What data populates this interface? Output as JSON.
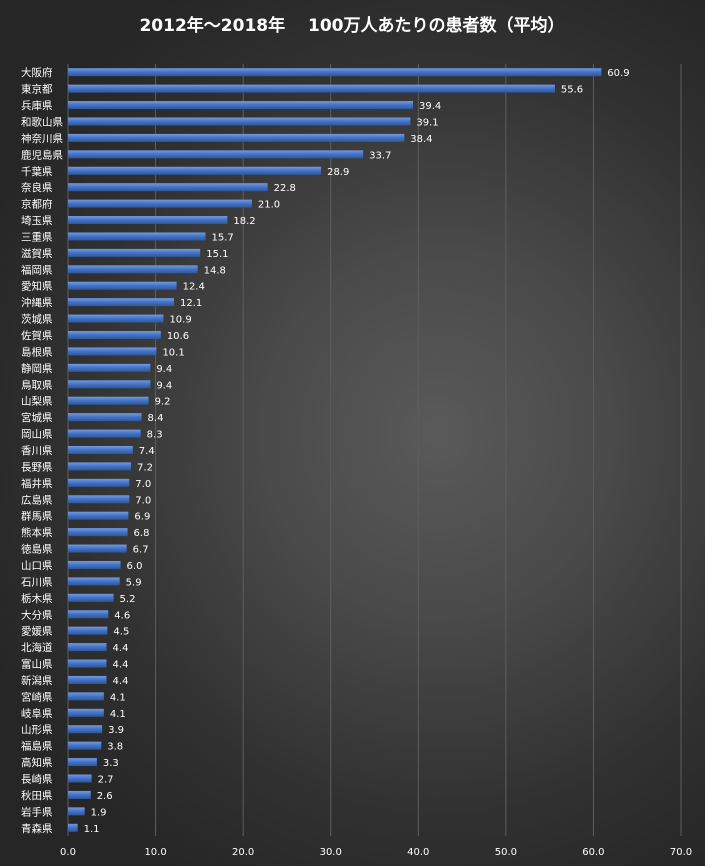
{
  "chart_data": {
    "type": "bar",
    "orientation": "horizontal",
    "title": "2012年～2018年　 100万人あたりの患者数（平均）",
    "xlim": [
      0,
      70
    ],
    "xticks": [
      "0.0",
      "10.0",
      "20.0",
      "30.0",
      "40.0",
      "50.0",
      "60.0",
      "70.0"
    ],
    "grid": true,
    "bar_color": "#4472c4",
    "categories": [
      "大阪府",
      "東京都",
      "兵庫県",
      "和歌山県",
      "神奈川県",
      "鹿児島県",
      "千葉県",
      "奈良県",
      "京都府",
      "埼玉県",
      "三重県",
      "滋賀県",
      "福岡県",
      "愛知県",
      "沖縄県",
      "茨城県",
      "佐賀県",
      "島根県",
      "静岡県",
      "鳥取県",
      "山梨県",
      "宮城県",
      "岡山県",
      "香川県",
      "長野県",
      "福井県",
      "広島県",
      "群馬県",
      "熊本県",
      "徳島県",
      "山口県",
      "石川県",
      "栃木県",
      "大分県",
      "愛媛県",
      "北海道",
      "富山県",
      "新潟県",
      "宮崎県",
      "岐阜県",
      "山形県",
      "福島県",
      "高知県",
      "長崎県",
      "秋田県",
      "岩手県",
      "青森県"
    ],
    "values": [
      60.9,
      55.6,
      39.4,
      39.1,
      38.4,
      33.7,
      28.9,
      22.8,
      21.0,
      18.2,
      15.7,
      15.1,
      14.8,
      12.4,
      12.1,
      10.9,
      10.6,
      10.1,
      9.4,
      9.4,
      9.2,
      8.4,
      8.3,
      7.4,
      7.2,
      7.0,
      7.0,
      6.9,
      6.8,
      6.7,
      6.0,
      5.9,
      5.2,
      4.6,
      4.5,
      4.4,
      4.4,
      4.4,
      4.1,
      4.1,
      3.9,
      3.8,
      3.3,
      2.7,
      2.6,
      1.9,
      1.1
    ],
    "value_labels": [
      "60.9",
      "55.6",
      "39.4",
      "39.1",
      "38.4",
      "33.7",
      "28.9",
      "22.8",
      "21.0",
      "18.2",
      "15.7",
      "15.1",
      "14.8",
      "12.4",
      "12.1",
      "10.9",
      "10.6",
      "10.1",
      "9.4",
      "9.4",
      "9.2",
      "8.4",
      "8.3",
      "7.4",
      "7.2",
      "7.0",
      "7.0",
      "6.9",
      "6.8",
      "6.7",
      "6.0",
      "5.9",
      "5.2",
      "4.6",
      "4.5",
      "4.4",
      "4.4",
      "4.4",
      "4.1",
      "4.1",
      "3.9",
      "3.8",
      "3.3",
      "2.7",
      "2.6",
      "1.9",
      "1.1"
    ]
  }
}
